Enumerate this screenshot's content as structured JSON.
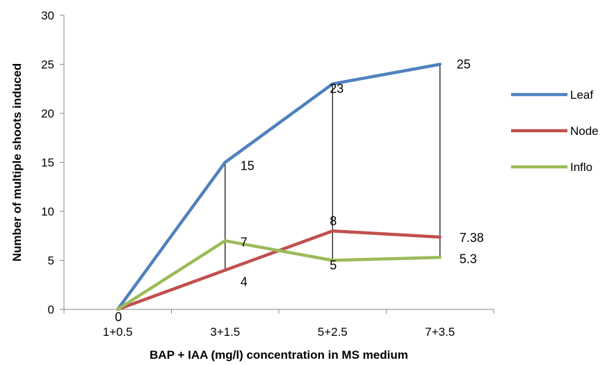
{
  "chart_data": {
    "type": "line",
    "title": "",
    "xlabel": "BAP + IAA (mg/l) concentration in MS medium",
    "ylabel": "Number of multiple shoots induced",
    "categories": [
      "1+0.5",
      "3+1.5",
      "5+2.5",
      "7+3.5"
    ],
    "ylim": [
      0,
      30
    ],
    "yticks": [
      "0",
      "5",
      "10",
      "15",
      "20",
      "25",
      "30"
    ],
    "grid": false,
    "legend_position": "right",
    "series": [
      {
        "name": "Leaf",
        "color": "#4f81bd",
        "values": [
          0,
          15,
          23,
          25
        ],
        "labels": [
          "",
          "15",
          "23",
          "25"
        ]
      },
      {
        "name": "Node",
        "color": "#c0504d",
        "values": [
          0,
          4,
          8,
          7.38
        ],
        "labels": [
          "",
          "4",
          "8",
          "7.38"
        ]
      },
      {
        "name": "Inflo",
        "color": "#9bbb59",
        "values": [
          0,
          7,
          5,
          5.3
        ],
        "labels": [
          "0",
          "7",
          "5",
          "5.3"
        ]
      }
    ],
    "high_low_lines": true
  }
}
